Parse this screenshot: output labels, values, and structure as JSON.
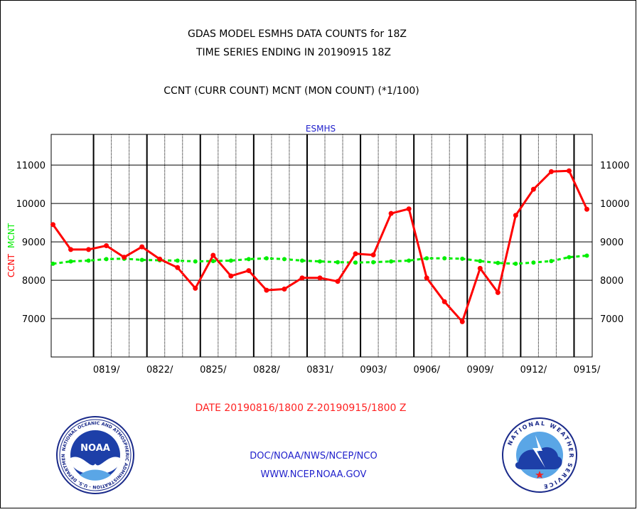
{
  "header": {
    "title_line1": "GDAS MODEL ESMHS DATA COUNTS for 18Z",
    "title_line2": "TIME SERIES ENDING IN 20190915 18Z",
    "legend_note": "CCNT (CURR COUNT) MCNT (MON COUNT) (*1/100)"
  },
  "footer": {
    "date_range": "DATE 20190816/1800 Z-20190915/1800 Z",
    "org_line": "DOC/NOAA/NWS/NCEP/NCO",
    "url_line": "WWW.NCEP.NOAA.GOV"
  },
  "logos": {
    "noaa": {
      "center_text": "NOAA",
      "ring_text": "NATIONAL OCEANIC AND ATMOSPHERIC ADMINISTRATION · U.S. DEPARTMENT OF COMMERCE"
    },
    "nws": {
      "ring_text": "NATIONAL WEATHER SERVICE"
    }
  },
  "colors": {
    "ccnt": "#ff0000",
    "mcnt": "#00ee00",
    "subtitle": "#2222cc",
    "footer_blue": "#2222cc",
    "footer_red": "#ff2222",
    "axis": "#000000"
  },
  "chart_data": {
    "type": "line",
    "subtitle": "ESMHS",
    "ylabel_ccnt": "CCNT",
    "ylabel_mcnt": "MCNT",
    "ylim": [
      6000,
      11800
    ],
    "yticks": [
      7000,
      8000,
      9000,
      10000,
      11000
    ],
    "ytick_labels": [
      "7000",
      "8000",
      "9000",
      "10000",
      "11000"
    ],
    "x_index_range": [
      -0.1,
      30.3
    ],
    "xtick_labels": [
      {
        "label": "0819/",
        "index": 3
      },
      {
        "label": "0822/",
        "index": 6
      },
      {
        "label": "0825/",
        "index": 9
      },
      {
        "label": "0828/",
        "index": 12
      },
      {
        "label": "0831/",
        "index": 15
      },
      {
        "label": "0903/",
        "index": 18
      },
      {
        "label": "0906/",
        "index": 21
      },
      {
        "label": "0909/",
        "index": 24
      },
      {
        "label": "0912/",
        "index": 27
      },
      {
        "label": "0915/",
        "index": 30
      }
    ],
    "grid_vertical_major": [
      2.28,
      5.28,
      8.28,
      11.28,
      14.28,
      17.28,
      20.28,
      23.28,
      26.28,
      29.28
    ],
    "grid_vertical_minor": [
      3.28,
      4.28,
      6.28,
      7.28,
      9.28,
      10.28,
      12.28,
      13.28,
      15.28,
      16.28,
      18.28,
      19.28,
      21.28,
      22.28,
      24.28,
      25.28,
      27.28,
      28.28
    ],
    "grid": true,
    "series": [
      {
        "name": "CCNT",
        "color": "#ff0000",
        "values": [
          9450,
          8800,
          8800,
          8900,
          8600,
          8870,
          8550,
          8330,
          7790,
          8650,
          8110,
          8250,
          7740,
          7770,
          8060,
          8060,
          7970,
          8690,
          8660,
          9740,
          9860,
          8060,
          7440,
          6920,
          8310,
          7680,
          9690,
          10370,
          10830,
          10850,
          9850
        ]
      },
      {
        "name": "MCNT",
        "color": "#00ee00",
        "values": [
          8430,
          8490,
          8510,
          8550,
          8560,
          8530,
          8520,
          8510,
          8490,
          8500,
          8510,
          8550,
          8570,
          8550,
          8510,
          8490,
          8470,
          8460,
          8470,
          8490,
          8510,
          8570,
          8570,
          8560,
          8500,
          8450,
          8430,
          8460,
          8500,
          8600,
          8640
        ]
      }
    ]
  }
}
